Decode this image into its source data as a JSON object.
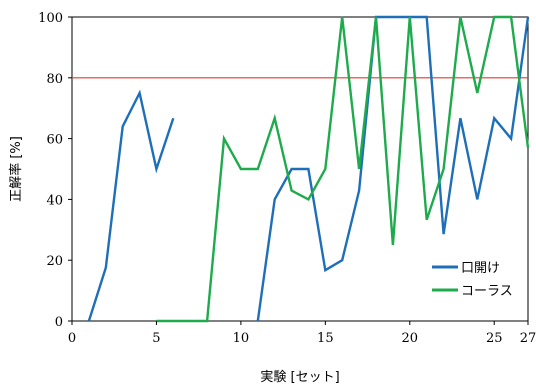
{
  "chart_data": {
    "type": "line",
    "xlabel": "実験 [セット]",
    "ylabel": "正解率 [%]",
    "xlim": [
      0,
      27
    ],
    "ylim": [
      0,
      100
    ],
    "xticks": [
      0,
      5,
      10,
      15,
      20,
      25,
      27
    ],
    "yticks": [
      0,
      20,
      40,
      60,
      80,
      100
    ],
    "grid": false,
    "legend": "bottom-right",
    "reference_line": {
      "y": 80,
      "color": "#e8392e"
    },
    "series": [
      {
        "name": "口開け",
        "color": "#1f6fb8",
        "segments": [
          {
            "x": [
              1,
              2,
              3,
              4,
              5,
              6
            ],
            "y": [
              0,
              17.5,
              64,
              75,
              50,
              66.7
            ]
          },
          {
            "x": [
              11,
              12,
              13,
              14,
              15,
              16,
              17,
              18,
              19,
              20,
              21,
              22,
              23,
              24,
              25,
              26,
              27
            ],
            "y": [
              0,
              40,
              50,
              50,
              16.7,
              20,
              42.9,
              100,
              100,
              100,
              100,
              28.6,
              66.7,
              40,
              66.7,
              60,
              100
            ]
          }
        ]
      },
      {
        "name": "コーラス",
        "color": "#1fab4d",
        "segments": [
          {
            "x": [
              5,
              6,
              7,
              8,
              9,
              10,
              11,
              12,
              13,
              14,
              15,
              16,
              17,
              18,
              19,
              20,
              21,
              22,
              23,
              24,
              25,
              26,
              27
            ],
            "y": [
              0,
              0,
              0,
              0,
              60,
              50,
              50,
              66.7,
              42.9,
              40,
              50,
              100,
              50,
              100,
              25,
              100,
              33.3,
              50,
              100,
              75,
              100,
              100,
              57
            ]
          }
        ]
      }
    ]
  }
}
